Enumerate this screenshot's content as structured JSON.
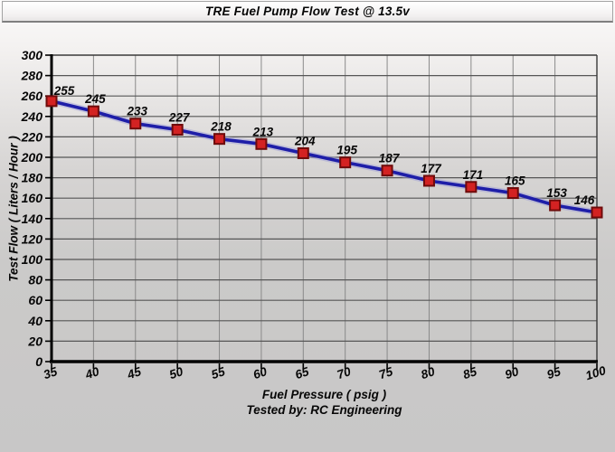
{
  "chart_data": {
    "type": "line",
    "title": "TRE Fuel Pump Flow Test @ 13.5v",
    "x": [
      35,
      40,
      45,
      50,
      55,
      60,
      65,
      70,
      75,
      80,
      85,
      90,
      95,
      100
    ],
    "series": [
      {
        "name": "Test Flow",
        "values": [
          255,
          245,
          233,
          227,
          218,
          213,
          204,
          195,
          187,
          177,
          171,
          165,
          153,
          146
        ]
      }
    ],
    "data_labels": [
      255,
      245,
      233,
      227,
      218,
      213,
      204,
      195,
      187,
      177,
      171,
      165,
      153,
      146
    ],
    "xlabel": "Fuel Pressure ( psig )",
    "ylabel": "Test Flow ( Liters / Hour )",
    "footer": "Tested by: RC Engineering",
    "xlim": [
      35,
      100
    ],
    "ylim": [
      0,
      300
    ],
    "x_tick_step": 5,
    "y_tick_step": 20,
    "grid": true,
    "legend_position": "none",
    "colors": {
      "line": "#1e1ea8",
      "line_glow": "#9c9cd8",
      "marker_fill": "#d32222",
      "marker_border": "#6e0b0b",
      "grid_horizontal": "#565656",
      "grid_vertical": "#8a8a8a",
      "axis": "#000000",
      "frame": "#3a3a3a",
      "text": "#070707"
    }
  }
}
